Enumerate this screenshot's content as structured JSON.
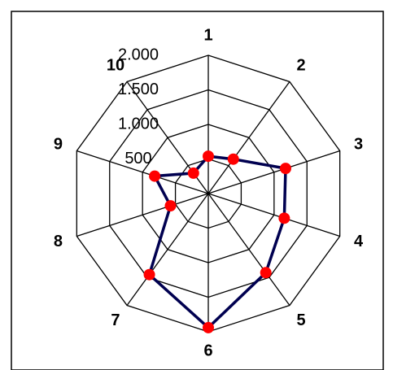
{
  "chart_data": {
    "type": "radar",
    "categories": [
      "1",
      "2",
      "3",
      "4",
      "5",
      "6",
      "7",
      "8",
      "9",
      "10"
    ],
    "series": [
      {
        "color": "#000050",
        "marker_color": "#ff0000",
        "values": [
          540,
          615,
          1175,
          1155,
          1415,
          1940,
          1450,
          575,
          815,
          365
        ]
      }
    ],
    "ylim": [
      0,
      2000
    ],
    "yticks": [
      {
        "value": 500,
        "label": "500"
      },
      {
        "value": 1000,
        "label": "1.000"
      },
      {
        "value": 1500,
        "label": "1.500"
      },
      {
        "value": 2000,
        "label": "2.000"
      }
    ],
    "grid": true
  }
}
